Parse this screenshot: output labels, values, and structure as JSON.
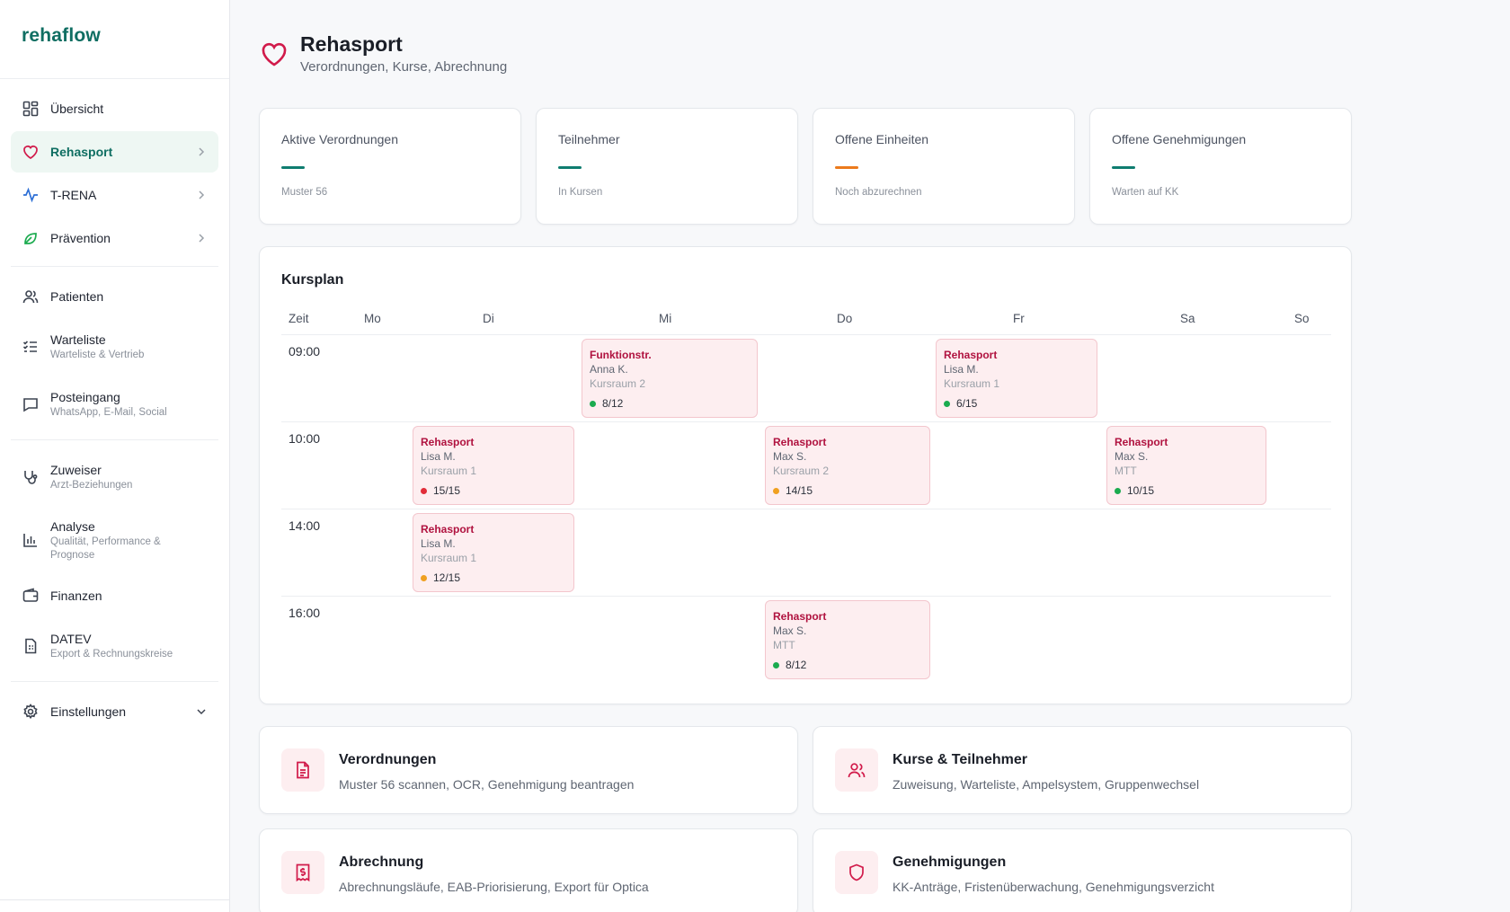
{
  "app": {
    "logo": "rehaflow"
  },
  "colors": {
    "brand": "#0f6e62",
    "accent": "#d11a4a",
    "orange": "#ec7a1c",
    "green": "#1bab4f",
    "red": "#e12d39",
    "amber": "#f0a020"
  },
  "sidebar": {
    "items": [
      {
        "label": "Übersicht",
        "icon": "grid-icon"
      },
      {
        "label": "Rehasport",
        "icon": "heart-icon",
        "active": true
      },
      {
        "label": "T-RENA",
        "icon": "activity-icon"
      },
      {
        "label": "Prävention",
        "icon": "leaf-icon"
      },
      {
        "label": "Patienten",
        "icon": "users-icon"
      },
      {
        "label": "Warteliste",
        "sub": "Warteliste & Vertrieb",
        "icon": "list-check-icon"
      },
      {
        "label": "Posteingang",
        "sub": "WhatsApp, E-Mail, Social",
        "icon": "message-icon"
      },
      {
        "label": "Zuweiser",
        "sub": "Arzt-Beziehungen",
        "icon": "stethoscope-icon"
      },
      {
        "label": "Analyse",
        "sub": "Qualität, Performance & Prognose",
        "icon": "bar-chart-icon"
      },
      {
        "label": "Finanzen",
        "icon": "wallet-icon"
      },
      {
        "label": "DATEV",
        "sub": "Export & Rechnungskreise",
        "icon": "document-icon"
      },
      {
        "label": "Einstellungen",
        "icon": "gear-icon"
      }
    ]
  },
  "header": {
    "title": "Rehasport",
    "subtitle": "Verordnungen, Kurse, Abrechnung"
  },
  "stats": [
    {
      "label": "Aktive Verordnungen",
      "hint": "Muster 56",
      "color": "#0f7d70"
    },
    {
      "label": "Teilnehmer",
      "hint": "In Kursen",
      "color": "#0f7d70"
    },
    {
      "label": "Offene Einheiten",
      "hint": "Noch abzurechnen",
      "color": "#ec7a1c"
    },
    {
      "label": "Offene Genehmigungen",
      "hint": "Warten auf KK",
      "color": "#0f7d70"
    }
  ],
  "kursplan": {
    "title": "Kursplan",
    "columns": [
      "Zeit",
      "Mo",
      "Di",
      "Mi",
      "Do",
      "Fr",
      "Sa",
      "So"
    ],
    "times": [
      "09:00",
      "10:00",
      "14:00",
      "16:00"
    ],
    "slots": [
      {
        "row": 0,
        "day": "Mi",
        "name": "Funktionstr.",
        "person": "Anna K.",
        "room": "Kursraum 2",
        "cap": "8/12",
        "status": "green"
      },
      {
        "row": 0,
        "day": "Fr",
        "name": "Rehasport",
        "person": "Lisa M.",
        "room": "Kursraum 1",
        "cap": "6/15",
        "status": "green"
      },
      {
        "row": 1,
        "day": "Di",
        "name": "Rehasport",
        "person": "Lisa M.",
        "room": "Kursraum 1",
        "cap": "15/15",
        "status": "red"
      },
      {
        "row": 1,
        "day": "Do",
        "name": "Rehasport",
        "person": "Max S.",
        "room": "Kursraum 2",
        "cap": "14/15",
        "status": "amber"
      },
      {
        "row": 1,
        "day": "Sa",
        "name": "Rehasport",
        "person": "Max S.",
        "room": "MTT",
        "cap": "10/15",
        "status": "green"
      },
      {
        "row": 2,
        "day": "Di",
        "name": "Rehasport",
        "person": "Lisa M.",
        "room": "Kursraum 1",
        "cap": "12/15",
        "status": "amber"
      },
      {
        "row": 3,
        "day": "Do",
        "name": "Rehasport",
        "person": "Max S.",
        "room": "MTT",
        "cap": "8/12",
        "status": "green"
      }
    ]
  },
  "cards": [
    {
      "title": "Verordnungen",
      "desc": "Muster 56 scannen, OCR, Genehmigung beantragen",
      "icon": "file-text-icon"
    },
    {
      "title": "Kurse & Teilnehmer",
      "desc": "Zuweisung, Warteliste, Ampelsystem, Gruppenwechsel",
      "icon": "users-icon"
    },
    {
      "title": "Abrechnung",
      "desc": "Abrechnungsläufe, EAB-Priorisierung, Export für Optica",
      "icon": "receipt-icon"
    },
    {
      "title": "Genehmigungen",
      "desc": "KK-Anträge, Fristenüberwachung, Genehmigungsverzicht",
      "icon": "shield-icon"
    }
  ]
}
